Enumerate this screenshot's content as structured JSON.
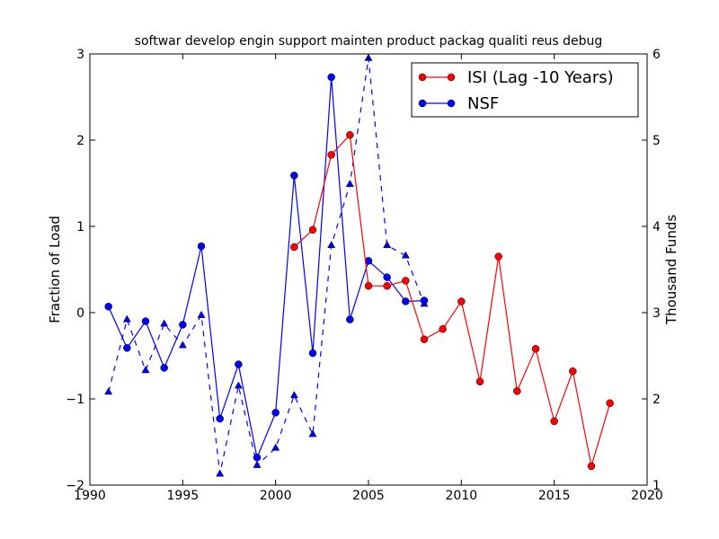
{
  "chart_data": {
    "type": "line",
    "title": "softwar develop engin support mainten product packag qualiti reus debug",
    "xlabel": "",
    "ylabel": "Fraction of Load",
    "ylabel_right": "Thousand Funds",
    "xlim": [
      1990,
      2020
    ],
    "ylim": [
      -2,
      3
    ],
    "ylim_right": [
      1,
      6
    ],
    "xticks": [
      "1990",
      "1995",
      "2000",
      "2005",
      "2010",
      "2015",
      "2020"
    ],
    "yticks": [
      "−2",
      "−1",
      "0",
      "1",
      "2",
      "3"
    ],
    "yticks_right": [
      "1",
      "2",
      "3",
      "4",
      "5",
      "6"
    ],
    "legend_placement": "top-right",
    "grid": false,
    "series": [
      {
        "name": "ISI (Lag -10 Years)",
        "color": "#ff0000",
        "marker": "circle",
        "axis": "left",
        "style": "solid",
        "x": [
          2001,
          2002,
          2003,
          2004,
          2005,
          2006,
          2007,
          2008,
          2009,
          2010,
          2011,
          2012,
          2013,
          2014,
          2015,
          2016,
          2017,
          2018
        ],
        "y": [
          0.76,
          0.96,
          1.83,
          2.06,
          0.31,
          0.31,
          0.37,
          -0.31,
          -0.19,
          0.13,
          -0.8,
          0.65,
          -0.91,
          -0.42,
          -1.26,
          -0.68,
          -1.78,
          -1.05
        ]
      },
      {
        "name": "NSF",
        "color": "#0000ff",
        "marker": "circle",
        "axis": "left",
        "style": "solid",
        "x": [
          1991,
          1992,
          1993,
          1994,
          1995,
          1996,
          1997,
          1998,
          1999,
          2000,
          2001,
          2002,
          2003,
          2004,
          2005,
          2006,
          2007,
          2008
        ],
        "y": [
          0.07,
          -0.41,
          -0.1,
          -0.64,
          -0.14,
          0.77,
          -1.23,
          -0.6,
          -1.68,
          -1.16,
          1.59,
          -0.47,
          2.73,
          -0.08,
          0.6,
          0.41,
          0.13,
          0.14
        ]
      },
      {
        "name": "",
        "color": "#0000ff",
        "marker": "triangle",
        "axis": "right",
        "style": "dashed",
        "x": [
          1991,
          1992,
          1993,
          1994,
          1995,
          1996,
          1997,
          1998,
          1999,
          2000,
          2001,
          2002,
          2003,
          2004,
          2005,
          2006,
          2007,
          2008
        ],
        "y": [
          2.08,
          2.92,
          2.33,
          2.87,
          2.62,
          2.97,
          1.13,
          2.15,
          1.23,
          1.43,
          2.04,
          1.59,
          3.78,
          4.49,
          5.95,
          3.78,
          3.66,
          3.1
        ]
      }
    ]
  }
}
